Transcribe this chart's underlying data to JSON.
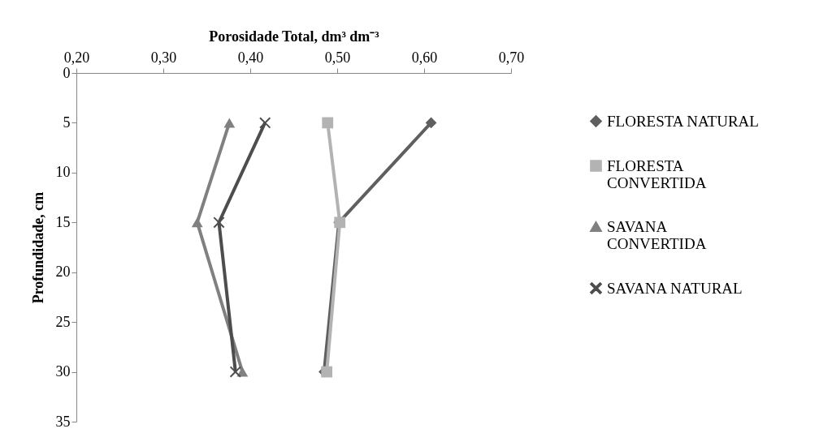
{
  "chart_data": {
    "type": "line",
    "xlabel": "Porosidade Total, dm³ dm⁻³",
    "ylabel": "Profundidade, cm",
    "xlim": [
      0.2,
      0.7
    ],
    "xticks": [
      {
        "value": 0.2,
        "label": "0,20"
      },
      {
        "value": 0.3,
        "label": "0,30"
      },
      {
        "value": 0.4,
        "label": "0,40"
      },
      {
        "value": 0.5,
        "label": "0,50"
      },
      {
        "value": 0.6,
        "label": "0,60"
      },
      {
        "value": 0.7,
        "label": "0,70"
      }
    ],
    "ylim": [
      35,
      0
    ],
    "yticks": [
      0,
      5,
      10,
      15,
      20,
      25,
      30,
      35
    ],
    "legend": "right",
    "grid": false,
    "series": [
      {
        "name": "FLORESTA NATURAL",
        "color": "#5f5f5f",
        "marker": "diamond",
        "x": [
          0.608,
          0.502,
          0.485
        ],
        "values": [
          5,
          15,
          30
        ]
      },
      {
        "name": "FLORESTA CONVERTIDA",
        "color": "#b3b3b3",
        "marker": "square",
        "x": [
          0.489,
          0.503,
          0.488
        ],
        "values": [
          5,
          15,
          30
        ]
      },
      {
        "name": "SAVANA CONVERTIDA",
        "color": "#808080",
        "marker": "triangle",
        "x": [
          0.376,
          0.339,
          0.391
        ],
        "values": [
          5,
          15,
          30
        ]
      },
      {
        "name": "SAVANA NATURAL",
        "color": "#4d4d4d",
        "marker": "cross",
        "x": [
          0.417,
          0.364,
          0.383
        ],
        "values": [
          5,
          15,
          30
        ]
      }
    ]
  }
}
